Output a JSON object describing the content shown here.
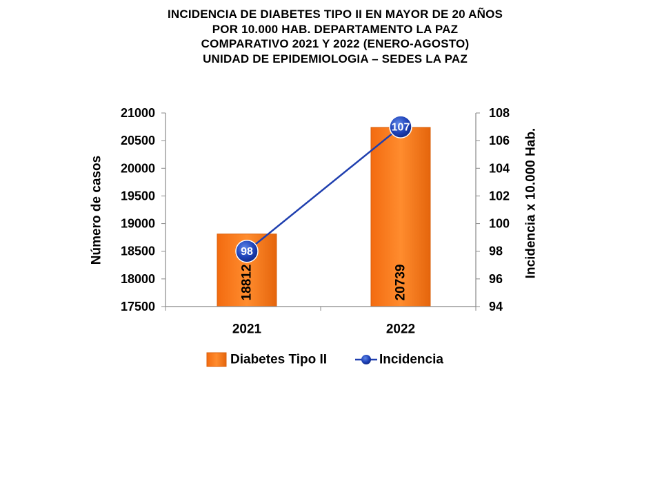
{
  "title_lines": [
    "INCIDENCIA DE DIABETES TIPO II  EN MAYOR DE 20 AÑOS",
    "POR 10.000 HAB. DEPARTAMENTO LA PAZ",
    "COMPARATIVO 2021 Y 2022 (ENERO-AGOSTO)",
    "UNIDAD DE EPIDEMIOLOGIA – SEDES LA PAZ"
  ],
  "chart_data": {
    "type": "bar",
    "categories": [
      "2021",
      "2022"
    ],
    "series": [
      {
        "name": "Diabetes Tipo II",
        "type": "bar",
        "axis": "left",
        "values": [
          18812,
          20739
        ],
        "color": "#F07A1A"
      },
      {
        "name": "Incidencia",
        "type": "line",
        "axis": "right",
        "values": [
          98,
          107
        ],
        "color": "#1F3FAF"
      }
    ],
    "ylabel": "Número de casos",
    "ylabel_right": "Incidencia x 10.000 Hab.",
    "ylim": [
      17500,
      21000
    ],
    "yticks": [
      17500,
      18000,
      18500,
      19000,
      19500,
      20000,
      20500,
      21000
    ],
    "ylim_right": [
      94,
      108
    ],
    "yticks_right": [
      94,
      96,
      98,
      100,
      102,
      104,
      106,
      108
    ],
    "legend_position": "bottom",
    "grid": false
  }
}
